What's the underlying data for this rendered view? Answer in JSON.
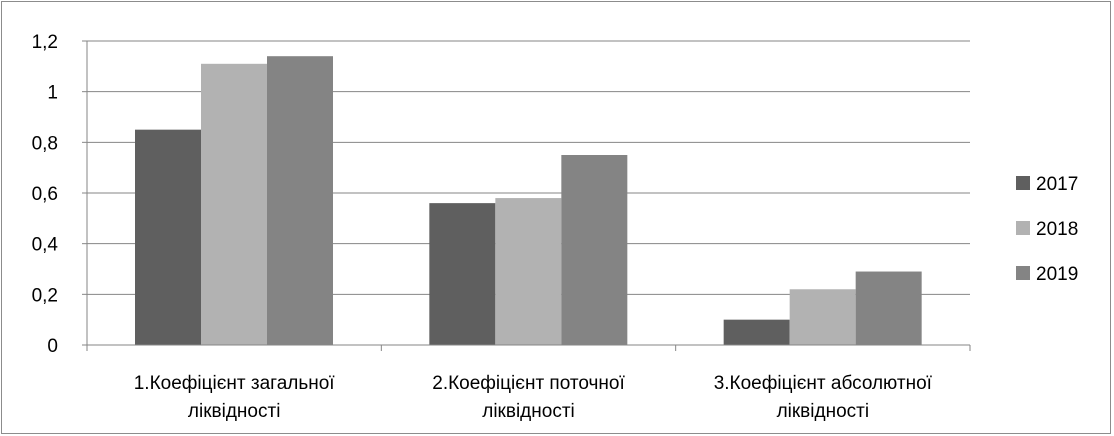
{
  "chart_data": {
    "type": "bar",
    "categories": [
      [
        "1.Коефіцієнт загальної",
        "ліквідності"
      ],
      [
        "2.Коефіцієнт поточної",
        "ліквідності"
      ],
      [
        "3.Коефіцієнт абсолютної",
        "ліквідності"
      ]
    ],
    "series": [
      {
        "name": "2017",
        "values": [
          0.85,
          0.56,
          0.1
        ],
        "color": "#5f5f5f"
      },
      {
        "name": "2018",
        "values": [
          1.11,
          0.58,
          0.22
        ],
        "color": "#b2b2b2"
      },
      {
        "name": "2019",
        "values": [
          1.14,
          0.75,
          0.29
        ],
        "color": "#848484"
      }
    ],
    "yticks": [
      "0",
      "0,2",
      "0,4",
      "0,6",
      "0,8",
      "1",
      "1,2"
    ],
    "ylim": [
      0,
      1.2
    ],
    "grid": true,
    "legend_position": "right",
    "title": "",
    "xlabel": "",
    "ylabel": ""
  }
}
